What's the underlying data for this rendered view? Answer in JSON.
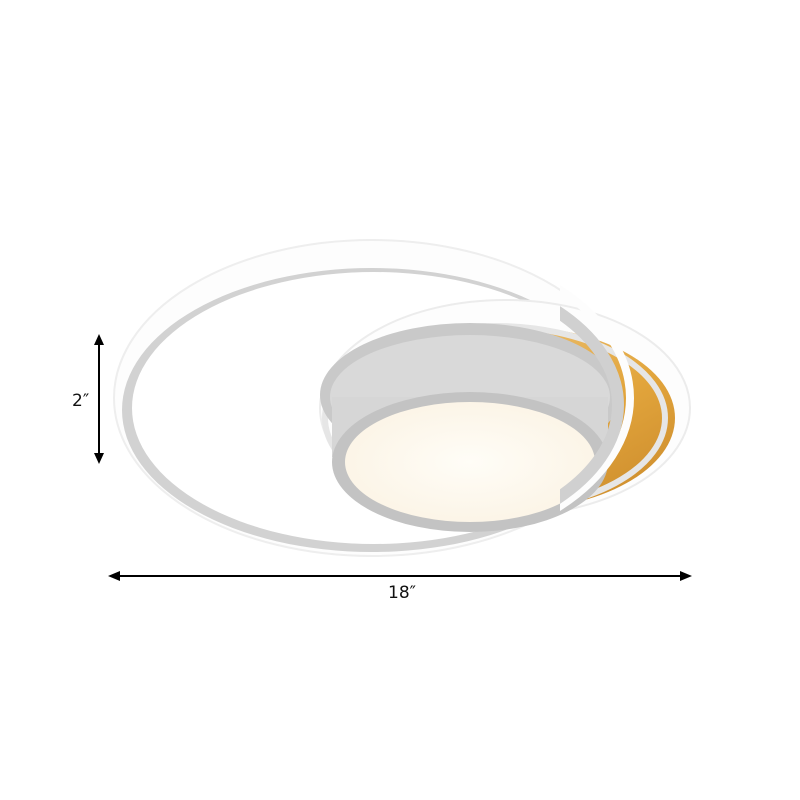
{
  "dimensions": {
    "height_label": "2″",
    "width_label": "18″"
  },
  "colors": {
    "ring_white": "#fbfbfb",
    "ring_gray": "#bdbdbd",
    "wood": "#e0a640",
    "panel_glow": "#fffaf0"
  }
}
